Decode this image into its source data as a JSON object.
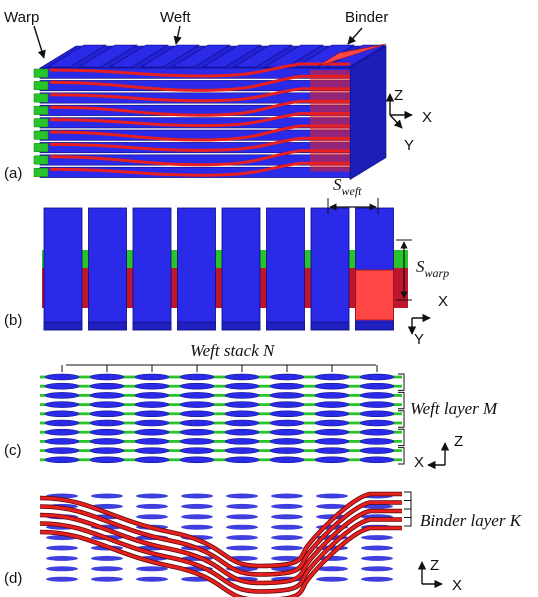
{
  "colors": {
    "warp": "#2a2ae8",
    "weft": "#2a2ae8",
    "binder": "#e81f1f",
    "weft_end": "#27c42a",
    "binder_face": "#ff4747",
    "background": "#ffffff"
  },
  "panel_a": {
    "label": "(a)",
    "callouts": {
      "warp": "Warp",
      "weft": "Weft",
      "binder": "Binder"
    },
    "axes": {
      "z": "Z",
      "x": "X",
      "y": "Y"
    }
  },
  "panel_b": {
    "label": "(b)",
    "s_weft": {
      "symbol": "S",
      "subscript": "weft"
    },
    "s_warp": {
      "symbol": "S",
      "subscript": "warp"
    },
    "axes": {
      "x": "X",
      "y": "Y"
    }
  },
  "panel_c": {
    "label": "(c)",
    "weft_stack_label": "Weft stack N",
    "weft_layer_label": "Weft layer M",
    "axes": {
      "z": "Z",
      "x": "X"
    }
  },
  "panel_d": {
    "label": "(d)",
    "binder_layer_label": "Binder layer K",
    "axes": {
      "z": "Z",
      "x": "X"
    }
  },
  "icons": [
    "axis-triad-icon"
  ]
}
